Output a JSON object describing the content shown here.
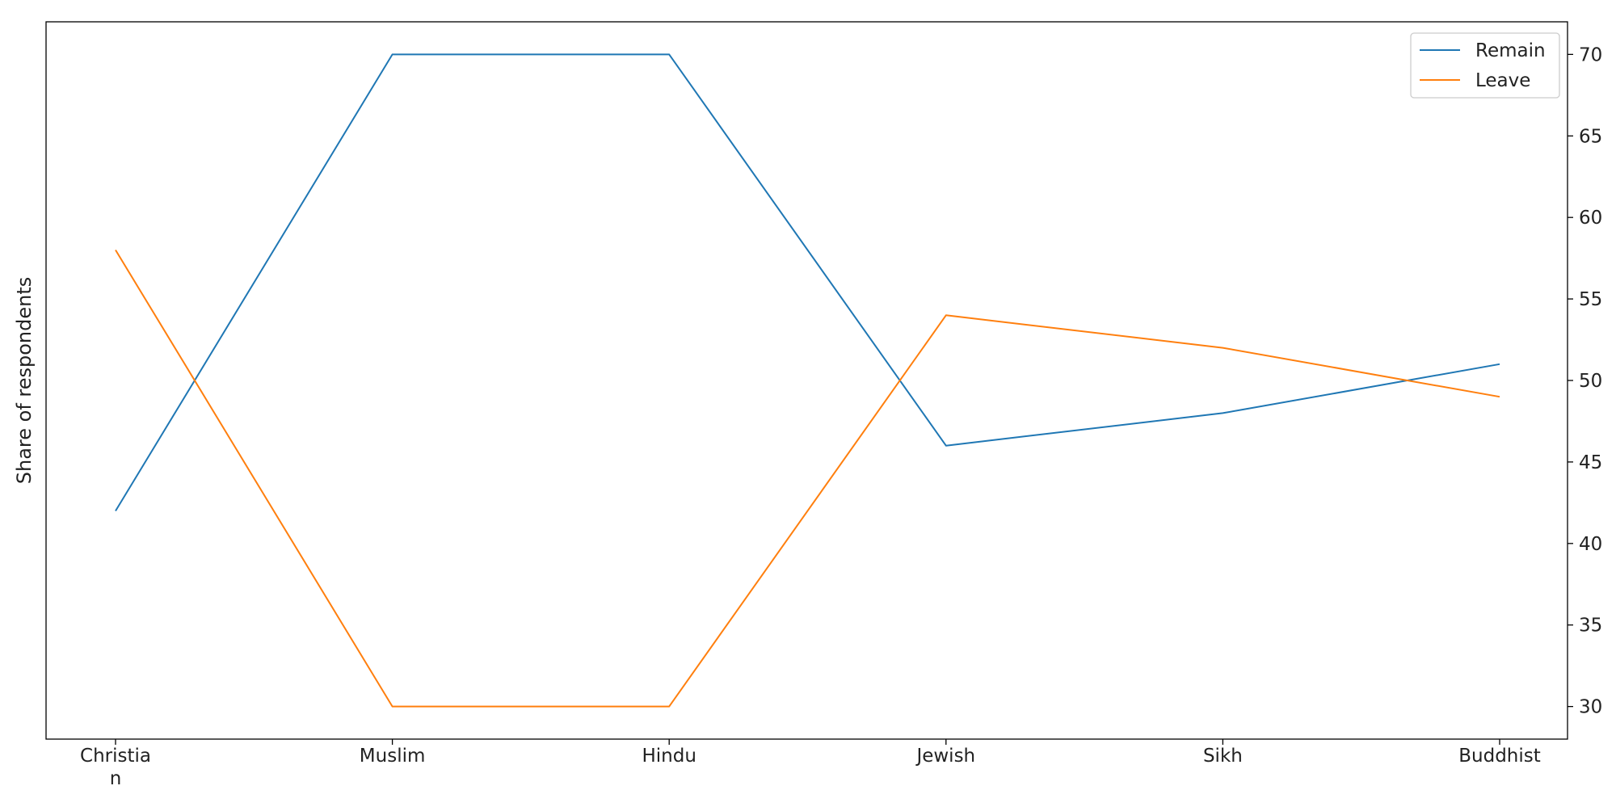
{
  "chart_data": {
    "type": "line",
    "title": "",
    "xlabel": "",
    "ylabel": "Share of respondents",
    "categories": [
      [
        "Christia",
        "n"
      ],
      [
        "Muslim"
      ],
      [
        "Hindu"
      ],
      [
        "Jewish"
      ],
      [
        "Sikh"
      ],
      [
        "Buddhist"
      ]
    ],
    "series": [
      {
        "name": "Remain",
        "color": "#1f77b4",
        "values": [
          42,
          70,
          70,
          46,
          48,
          51
        ]
      },
      {
        "name": "Leave",
        "color": "#ff7f0e",
        "values": [
          58,
          30,
          30,
          54,
          52,
          49
        ]
      }
    ],
    "ylim": [
      28,
      72
    ],
    "yticks": [
      30,
      35,
      40,
      45,
      50,
      55,
      60,
      65,
      70
    ],
    "y_axis_side": "right",
    "grid": false,
    "legend_position": "top-right"
  }
}
